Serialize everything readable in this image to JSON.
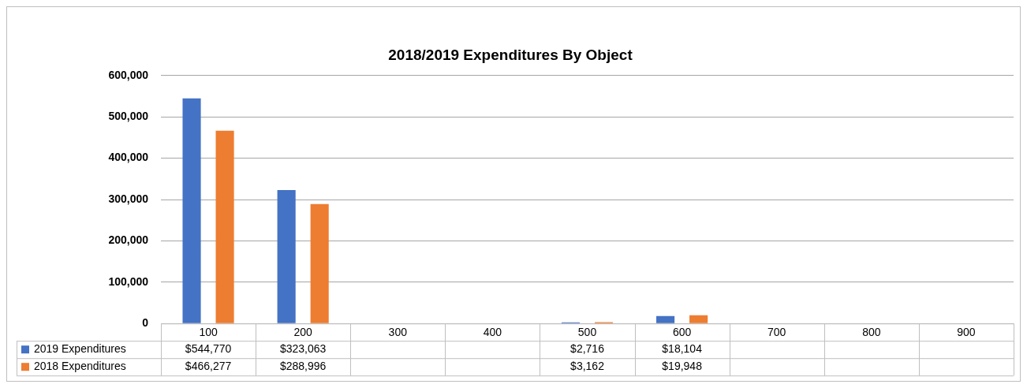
{
  "chart_data": {
    "type": "bar",
    "title": "2018/2019 Expenditures By Object",
    "categories": [
      "100",
      "200",
      "300",
      "400",
      "500",
      "600",
      "700",
      "800",
      "900"
    ],
    "series": [
      {
        "name": "2019 Expenditures",
        "color": "#4472c4",
        "values": [
          544770,
          323063,
          null,
          null,
          2716,
          18104,
          null,
          null,
          null
        ],
        "value_labels": [
          "$544,770",
          "$323,063",
          null,
          null,
          "$2,716",
          "$18,104",
          null,
          null,
          null
        ]
      },
      {
        "name": "2018 Expenditures",
        "color": "#ed7d31",
        "values": [
          466277,
          288996,
          null,
          null,
          3162,
          19948,
          null,
          null,
          null
        ],
        "value_labels": [
          "$466,277",
          "$288,996",
          null,
          null,
          "$3,162",
          "$19,948",
          null,
          null,
          null
        ]
      }
    ],
    "ylim": [
      0,
      600000
    ],
    "yticks": [
      0,
      {
        "value": 100000,
        "label": "100,000"
      },
      {
        "value": 200000,
        "label": "200,000"
      },
      {
        "value": 300000,
        "label": "300,000"
      },
      {
        "value": 400000,
        "label": "400,000"
      },
      {
        "value": 500000,
        "label": "500,000"
      },
      {
        "value": 600000,
        "label": "600,000"
      }
    ],
    "grid": "y",
    "legend": "bottom"
  }
}
